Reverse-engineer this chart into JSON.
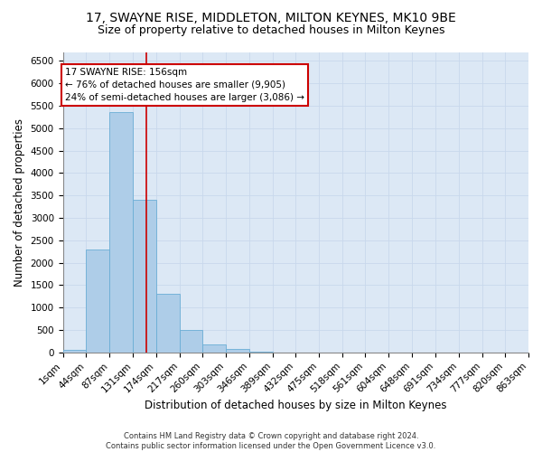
{
  "title1": "17, SWAYNE RISE, MIDDLETON, MILTON KEYNES, MK10 9BE",
  "title2": "Size of property relative to detached houses in Milton Keynes",
  "xlabel": "Distribution of detached houses by size in Milton Keynes",
  "ylabel": "Number of detached properties",
  "footnote": "Contains HM Land Registry data © Crown copyright and database right 2024.\nContains public sector information licensed under the Open Government Licence v3.0.",
  "bin_edges": [
    1,
    44,
    87,
    131,
    174,
    217,
    260,
    303,
    346,
    389,
    432,
    475,
    518,
    561,
    604,
    648,
    691,
    734,
    777,
    820,
    863
  ],
  "bar_heights": [
    50,
    2300,
    5350,
    3400,
    1300,
    500,
    170,
    70,
    20,
    5,
    2,
    1,
    0,
    0,
    0,
    0,
    0,
    0,
    0,
    0
  ],
  "bar_color": "#aecde8",
  "bar_edge_color": "#6aadd5",
  "property_size": 156,
  "vline_color": "#cc0000",
  "annotation_text": "17 SWAYNE RISE: 156sqm\n← 76% of detached houses are smaller (9,905)\n24% of semi-detached houses are larger (3,086) →",
  "annotation_box_color": "#ffffff",
  "annotation_box_edge": "#cc0000",
  "ylim": [
    0,
    6700
  ],
  "yticks": [
    0,
    500,
    1000,
    1500,
    2000,
    2500,
    3000,
    3500,
    4000,
    4500,
    5000,
    5500,
    6000,
    6500
  ],
  "grid_color": "#c8d8ec",
  "background_color": "#dce8f5",
  "title1_fontsize": 10,
  "title2_fontsize": 9,
  "xlabel_fontsize": 8.5,
  "ylabel_fontsize": 8.5,
  "tick_fontsize": 7.5,
  "annotation_fontsize": 7.5,
  "footnote_fontsize": 6.0
}
